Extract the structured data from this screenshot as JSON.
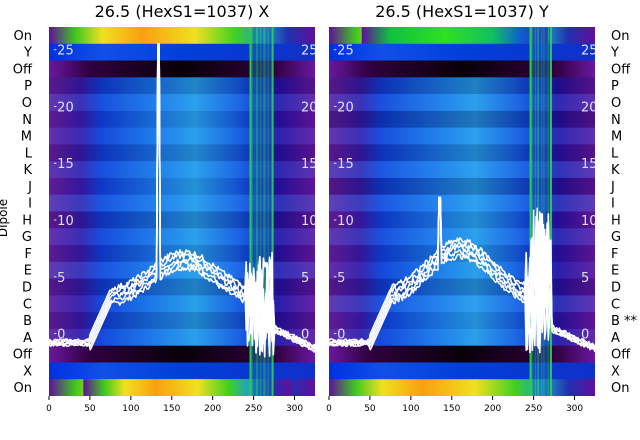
{
  "chart_data": {
    "type": "heatmap",
    "ylabel": "Dipole",
    "row_labels_left": [
      "On",
      "Y",
      "Off",
      "P",
      "O",
      "N",
      "M",
      "L",
      "K",
      "J",
      "I",
      "H",
      "G",
      "F",
      "E",
      "D",
      "C",
      "B",
      "A",
      "Off",
      "X",
      "On"
    ],
    "row_labels_right": [
      "On",
      "Y",
      "Off",
      "P",
      "O",
      "N",
      "M",
      "L",
      "K",
      "J",
      "I",
      "H",
      "G",
      "F",
      "E",
      "D",
      "C",
      "B **",
      "A",
      "Off",
      "X",
      "On"
    ],
    "xlim": [
      0,
      325
    ],
    "x_ticks": [
      0,
      50,
      100,
      150,
      200,
      250,
      300
    ],
    "overlay_ylim": [
      -5.5,
      27
    ],
    "overlay_ticks": [
      0,
      5,
      10,
      15,
      20,
      25
    ],
    "panels": [
      {
        "title": "26.5 (HexS1=1037) X",
        "spike_x": 134,
        "spike_top": 25.5,
        "noise_range": [
          245,
          272
        ],
        "noise_peak": 9,
        "hump_peak": 6.5,
        "hump_center": 165,
        "noise_offset": 0.8
      },
      {
        "title": "26.5 (HexS1=1037) Y",
        "spike_x": 135,
        "spike_top": 12,
        "noise_range": [
          245,
          270
        ],
        "noise_peak": 13,
        "hump_peak": 7.5,
        "hump_center": 160,
        "noise_offset": 2.0
      }
    ]
  }
}
